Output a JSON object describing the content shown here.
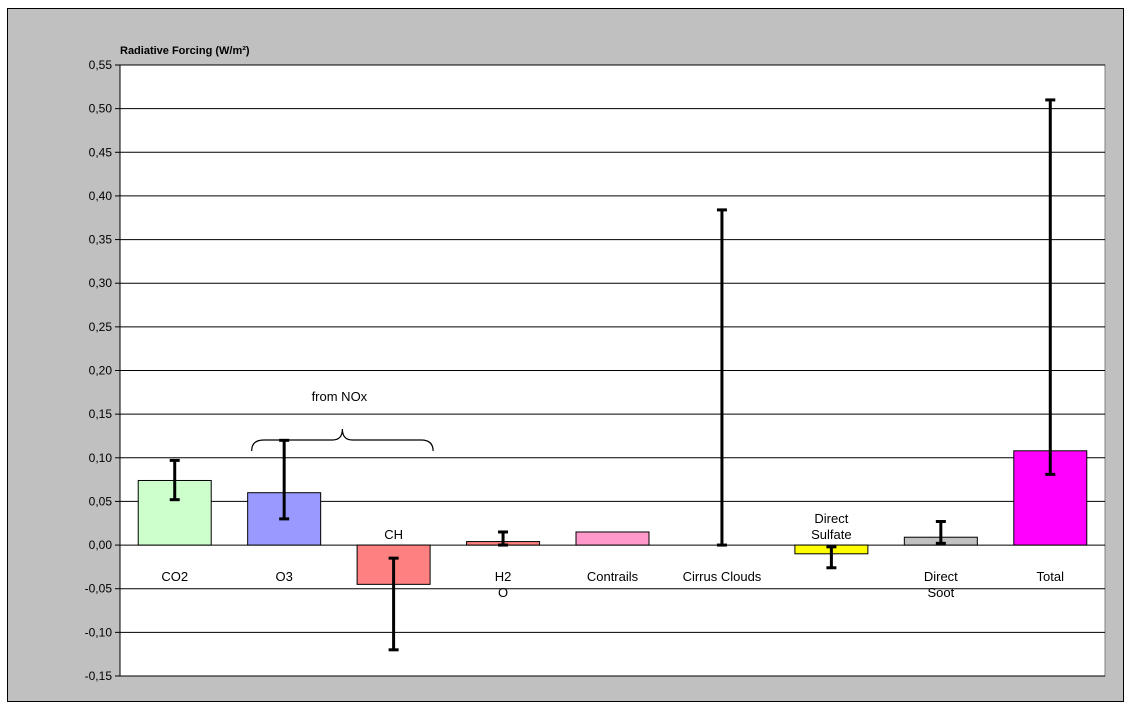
{
  "chart_data": {
    "type": "bar",
    "title": "Radiative Forcing (W/m²)",
    "xlabel": "",
    "ylabel": "",
    "ylim": [
      -0.15,
      0.55
    ],
    "y_ticks": [
      "-0,15",
      "-0,10",
      "-0,05",
      "0,00",
      "0,05",
      "0,10",
      "0,15",
      "0,20",
      "0,25",
      "0,30",
      "0,35",
      "0,40",
      "0,45",
      "0,50",
      "0,55"
    ],
    "grid": true,
    "legend": "none",
    "categories": [
      "CO2",
      "O3",
      "CH",
      "H2O",
      "Contrails",
      "Cirrus Clouds",
      "Direct Sulfate",
      "Direct Soot",
      "Total"
    ],
    "category_labels": [
      [
        "CO2"
      ],
      [
        "O3"
      ],
      [
        "CH"
      ],
      [
        "H2",
        "O"
      ],
      [
        "Contrails"
      ],
      [
        "Cirrus Clouds"
      ],
      [
        "Direct",
        "Sulfate"
      ],
      [
        "Direct",
        "Soot"
      ],
      [
        "Total"
      ]
    ],
    "label_placement": [
      "below",
      "below",
      "above",
      "below",
      "below",
      "below",
      "above",
      "below",
      "below"
    ],
    "values": [
      0.074,
      0.06,
      -0.045,
      0.004,
      0.015,
      0.0,
      -0.01,
      0.009,
      0.108
    ],
    "error_low": [
      0.052,
      0.03,
      -0.12,
      0.0,
      null,
      0.0,
      -0.026,
      0.002,
      0.081
    ],
    "error_high": [
      0.097,
      0.12,
      -0.015,
      0.015,
      null,
      0.384,
      -0.002,
      0.027,
      0.51
    ],
    "colors": [
      "#ccffcc",
      "#9999ff",
      "#ff8080",
      "#ff8080",
      "#ff99cc",
      "#ffffff",
      "#ffff00",
      "#c0c0c0",
      "#ff00ff"
    ],
    "annotations": [
      {
        "text": "from NOx",
        "brace_from_category": 1,
        "brace_to_category": 2
      }
    ],
    "plot_background": "#ffffff",
    "chart_background": "#c0c0c0"
  }
}
